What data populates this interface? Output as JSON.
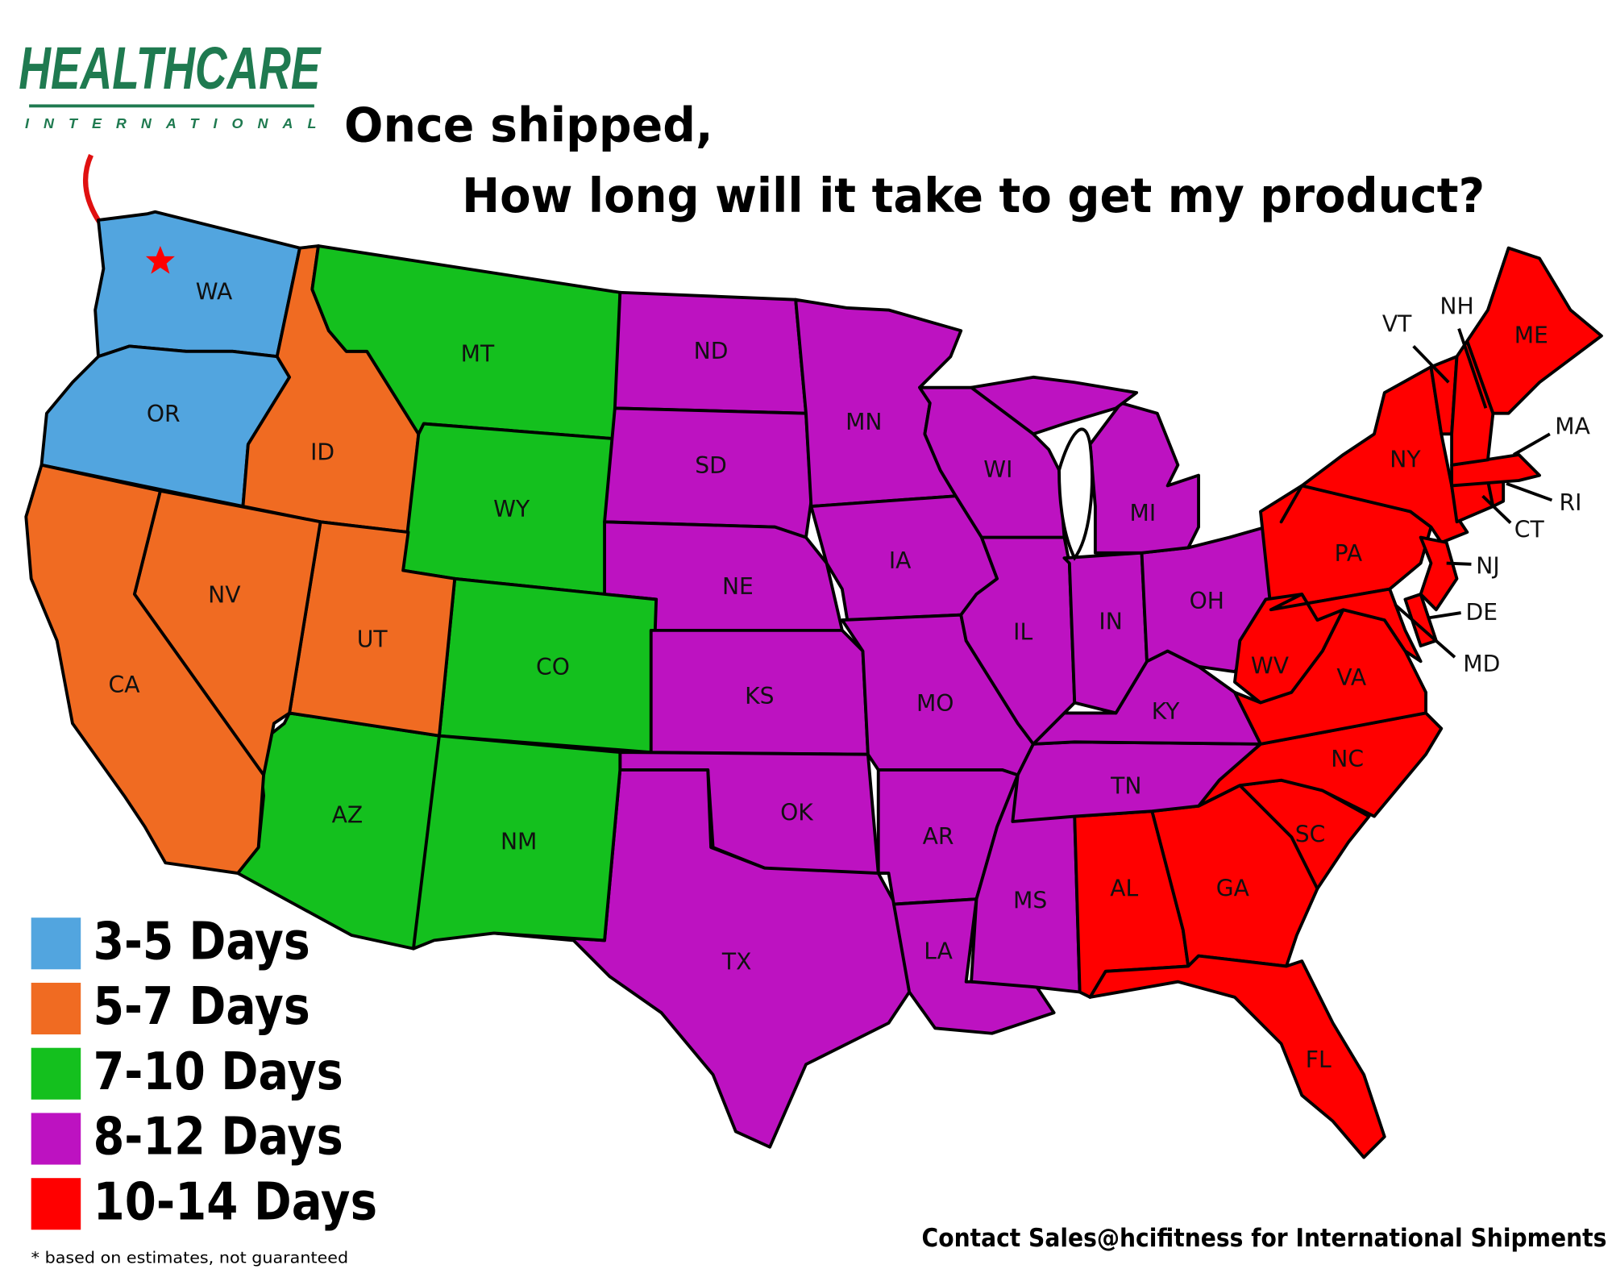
{
  "logo": {
    "name": "HEALTHCARE",
    "sub": "INTERNATIONAL",
    "color": "#1f7a50"
  },
  "title": {
    "line1": "Once shipped,",
    "line2": "How long will it take to get my product?"
  },
  "legend": [
    {
      "label": "3-5 Days",
      "color": "#52a5df"
    },
    {
      "label": "5-7 Days",
      "color": "#f06b22"
    },
    {
      "label": "7-10 Days",
      "color": "#14c01e"
    },
    {
      "label": "8-12 Days",
      "color": "#bd12c1"
    },
    {
      "label": "10-14 Days",
      "color": "#ff0000"
    }
  ],
  "states": {
    "WA": "3-5 Days",
    "OR": "3-5 Days",
    "ID": "5-7 Days",
    "CA": "5-7 Days",
    "NV": "5-7 Days",
    "UT": "5-7 Days",
    "MT": "7-10 Days",
    "WY": "7-10 Days",
    "CO": "7-10 Days",
    "AZ": "7-10 Days",
    "NM": "7-10 Days",
    "ND": "8-12 Days",
    "SD": "8-12 Days",
    "NE": "8-12 Days",
    "KS": "8-12 Days",
    "OK": "8-12 Days",
    "TX": "8-12 Days",
    "MN": "8-12 Days",
    "IA": "8-12 Days",
    "MO": "8-12 Days",
    "AR": "8-12 Days",
    "LA": "8-12 Days",
    "MS": "8-12 Days",
    "WI": "8-12 Days",
    "IL": "8-12 Days",
    "MI": "8-12 Days",
    "IN": "8-12 Days",
    "OH": "8-12 Days",
    "KY": "8-12 Days",
    "TN": "8-12 Days",
    "AL": "10-14 Days",
    "GA": "10-14 Days",
    "FL": "10-14 Days",
    "SC": "10-14 Days",
    "NC": "10-14 Days",
    "VA": "10-14 Days",
    "WV": "10-14 Days",
    "PA": "10-14 Days",
    "NY": "10-14 Days",
    "MD": "10-14 Days",
    "DE": "10-14 Days",
    "NJ": "10-14 Days",
    "CT": "10-14 Days",
    "RI": "10-14 Days",
    "MA": "10-14 Days",
    "VT": "10-14 Days",
    "NH": "10-14 Days",
    "ME": "10-14 Days"
  },
  "marker": {
    "icon": "star-icon",
    "color": "#ff0000"
  },
  "contact": "Contact Sales@hcifitness for International Shipments",
  "footnote": "* based on estimates, not guaranteed"
}
